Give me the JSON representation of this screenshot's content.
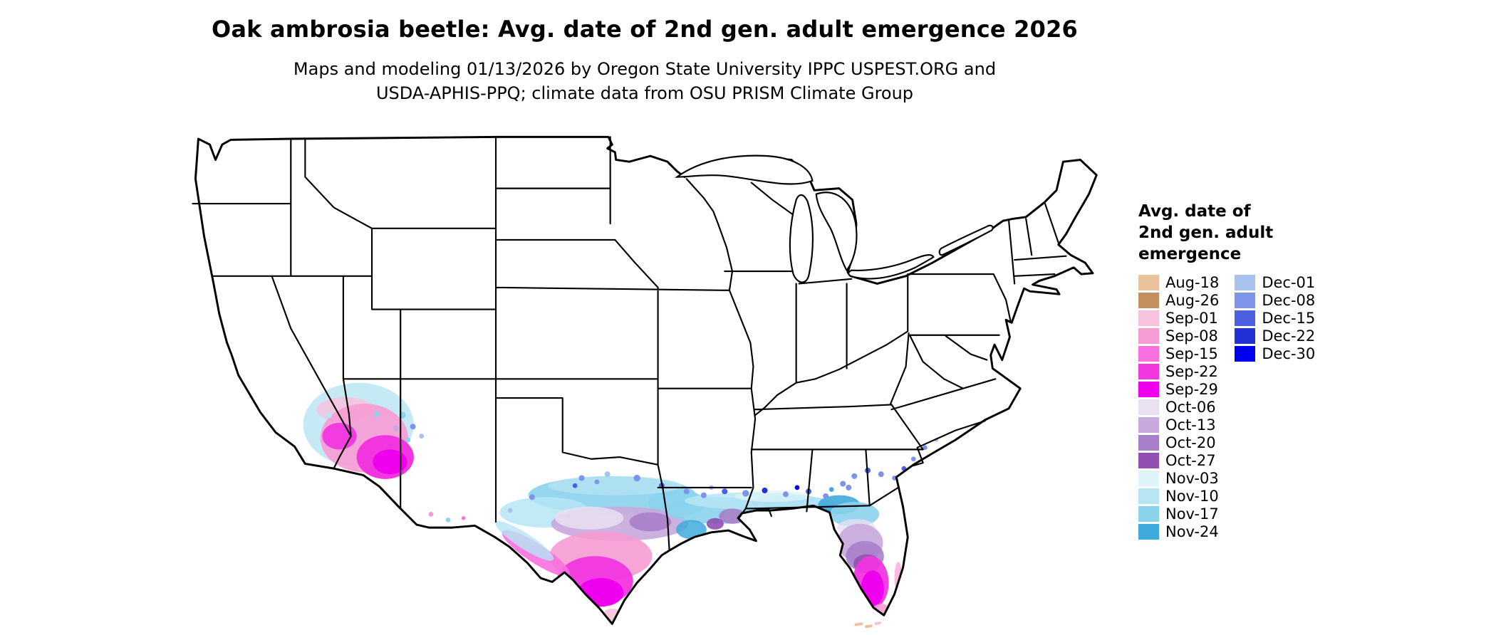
{
  "header": {
    "title": "Oak ambrosia beetle: Avg. date of 2nd gen. adult emergence 2026",
    "subtitle_line1": "Maps and modeling 01/13/2026 by Oregon State University IPPC USPEST.ORG and",
    "subtitle_line2": "USDA-APHIS-PPQ; climate data from OSU PRISM Climate Group"
  },
  "legend": {
    "title_lines": [
      "Avg. date of",
      "2nd gen. adult",
      "emergence"
    ],
    "columns": [
      {
        "items": [
          "Aug-18",
          "Aug-26",
          "Sep-01",
          "Sep-08",
          "Sep-15",
          "Sep-22",
          "Sep-29",
          "Oct-06",
          "Oct-13",
          "Oct-20",
          "Oct-27",
          "Nov-03",
          "Nov-10",
          "Nov-17",
          "Nov-24"
        ]
      },
      {
        "items": [
          "Dec-01",
          "Dec-08",
          "Dec-15",
          "Dec-22",
          "Dec-30"
        ]
      }
    ]
  },
  "palette": {
    "Aug-18": "#EAC39C",
    "Aug-26": "#C38F5F",
    "Sep-01": "#F7C2DD",
    "Sep-08": "#F79BD4",
    "Sep-15": "#F970DF",
    "Sep-22": "#F136E0",
    "Sep-29": "#EE00EE",
    "Oct-06": "#E9E0F1",
    "Oct-13": "#C7A9DD",
    "Oct-20": "#A87FC9",
    "Oct-27": "#9150B2",
    "Nov-03": "#DFF3FA",
    "Nov-10": "#B7E5F4",
    "Nov-17": "#8BD2EC",
    "Nov-24": "#41AADC",
    "Dec-01": "#A8C2F0",
    "Dec-08": "#7D94EA",
    "Dec-15": "#4A60E0",
    "Dec-22": "#2231D6",
    "Dec-30": "#0000EE"
  },
  "map": {
    "land_color": "#FFFFFF",
    "border_color": "#000000",
    "regions": [
      "southwest-arizona",
      "south-texas",
      "gulf-coast",
      "florida",
      "atlantic-coast-speckles"
    ]
  }
}
